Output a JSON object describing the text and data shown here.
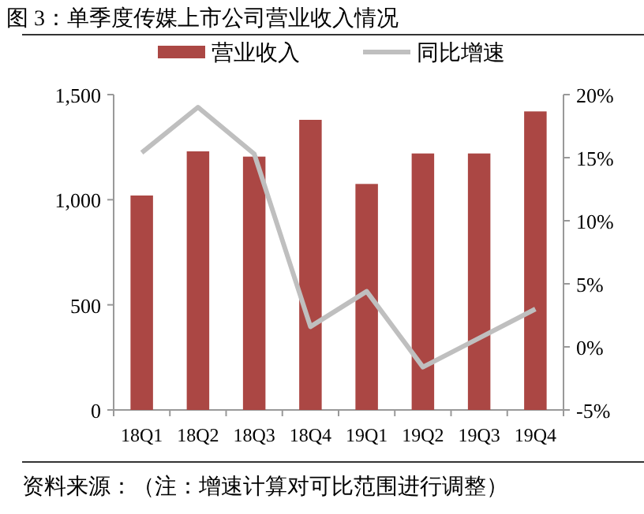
{
  "chart_data": {
    "type": "bar",
    "title": "图 3：单季度传媒上市公司营业收入情况",
    "categories": [
      "18Q1",
      "18Q2",
      "18Q3",
      "18Q4",
      "19Q1",
      "19Q2",
      "19Q3",
      "19Q4"
    ],
    "series": [
      {
        "name": "营业收入",
        "color": "#ab4744",
        "values": [
          1020,
          1230,
          1205,
          1380,
          1075,
          1220,
          1220,
          1420
        ]
      },
      {
        "name": "同比增速",
        "type": "line",
        "axis": "y2",
        "color": "#bfbfbf",
        "values": [
          15.4,
          19.0,
          15.3,
          1.6,
          4.4,
          -1.6,
          0.7,
          3.0
        ]
      }
    ],
    "ylim": [
      0,
      1500
    ],
    "yticks": [
      {
        "value": 0,
        "label": "0"
      },
      {
        "value": 500,
        "label": "500"
      },
      {
        "value": 1000,
        "label": "1,000"
      },
      {
        "value": 1500,
        "label": "1,500"
      }
    ],
    "y2lim": [
      -5,
      20
    ],
    "y2ticks": [
      {
        "value": -5,
        "label": "-5%"
      },
      {
        "value": 0,
        "label": "0%"
      },
      {
        "value": 5,
        "label": "5%"
      },
      {
        "value": 10,
        "label": "10%"
      },
      {
        "value": 15,
        "label": "15%"
      },
      {
        "value": 20,
        "label": "20%"
      }
    ],
    "legend": "top",
    "grid": false,
    "annotations": [
      "资料来源：（注：增速计算对可比范围进行调整）"
    ]
  }
}
